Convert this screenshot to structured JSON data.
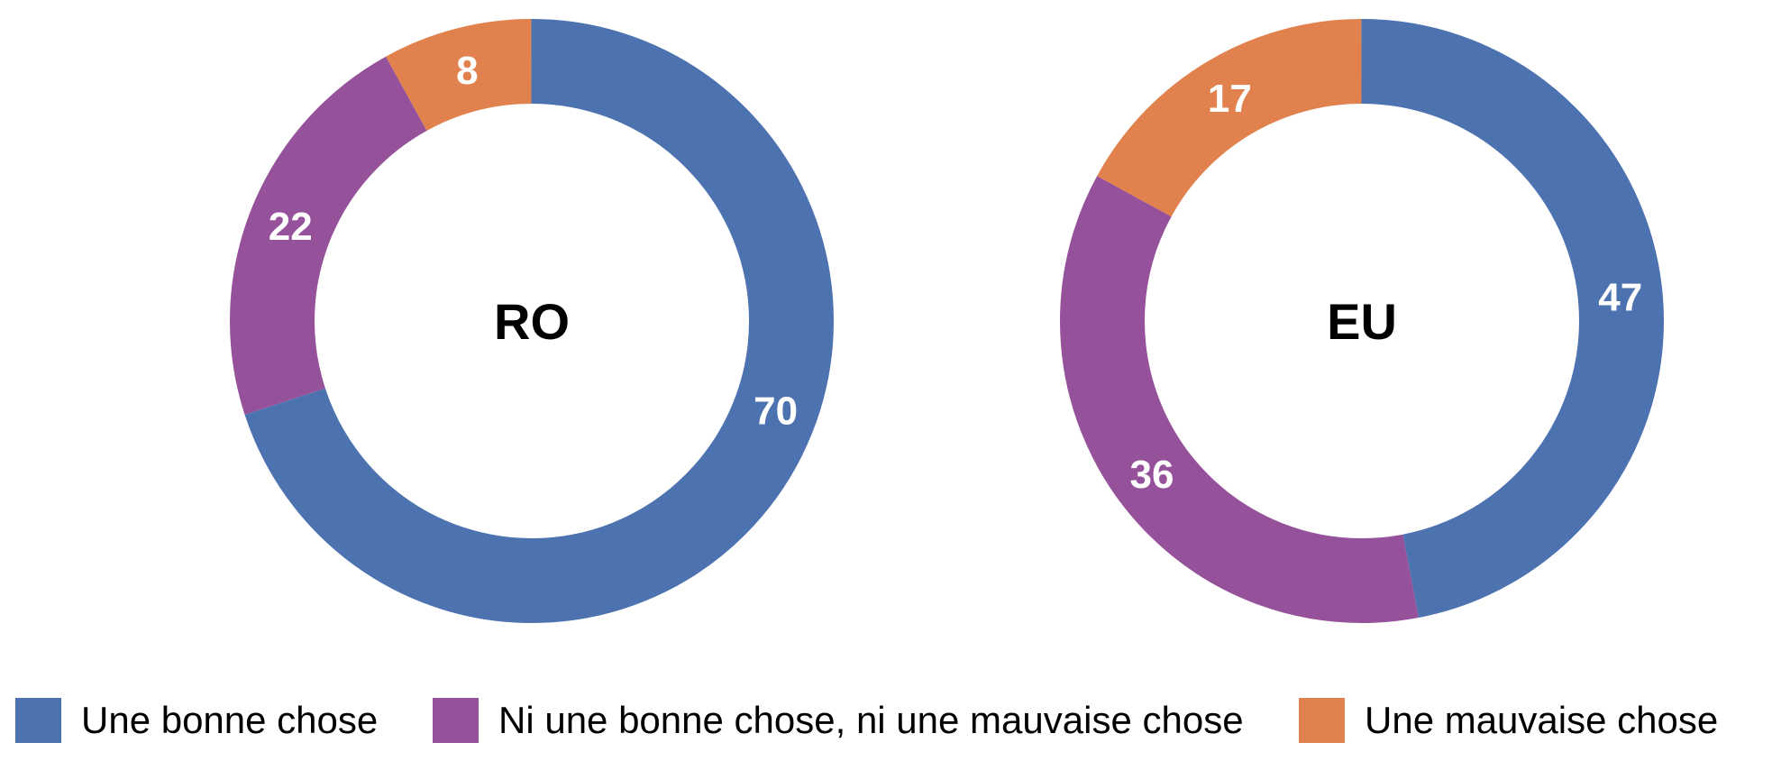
{
  "colors": {
    "good": "#4C72B0",
    "neutral": "#96519B",
    "bad": "#E0814E",
    "slice_label_text": "#FFFFFF",
    "center_label_text": "#000000",
    "background": "#FFFFFF"
  },
  "chart_data": [
    {
      "type": "pie",
      "subtype": "donut",
      "center_label": "RO",
      "categories": [
        "Une bonne chose",
        "Ni une bonne chose, ni une mauvaise chose",
        "Une mauvaise chose"
      ],
      "values": [
        70,
        22,
        8
      ],
      "colors": [
        "#4C72B0",
        "#96519B",
        "#E0814E"
      ],
      "start_angle_deg": 0,
      "direction": "clockwise",
      "label_angle_overrides": [
        110,
        null,
        null
      ],
      "legend_position": "bottom"
    },
    {
      "type": "pie",
      "subtype": "donut",
      "center_label": "EU",
      "categories": [
        "Une bonne chose",
        "Ni une bonne chose, ni une mauvaise chose",
        "Une mauvaise chose"
      ],
      "values": [
        47,
        36,
        17
      ],
      "colors": [
        "#4C72B0",
        "#96519B",
        "#E0814E"
      ],
      "start_angle_deg": 0,
      "direction": "clockwise",
      "label_angle_overrides": [
        null,
        null,
        null
      ],
      "legend_position": "bottom"
    }
  ],
  "legend": {
    "items": [
      {
        "label": "Une bonne chose",
        "color": "#4C72B0"
      },
      {
        "label": "Ni une bonne chose, ni une mauvaise chose",
        "color": "#96519B"
      },
      {
        "label": "Une mauvaise chose",
        "color": "#E0814E"
      }
    ]
  }
}
